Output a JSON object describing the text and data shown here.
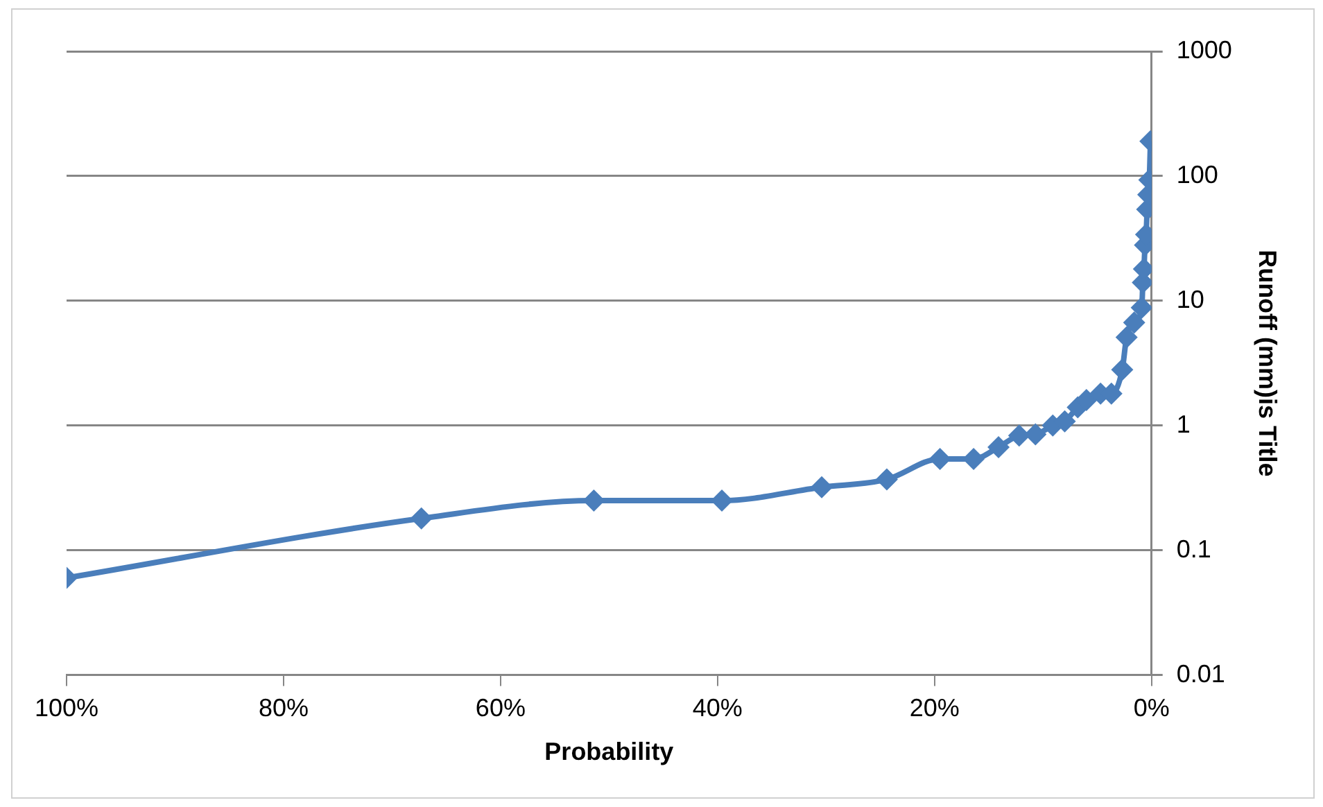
{
  "chart_data": {
    "type": "line",
    "xlabel": "Probability",
    "ylabel": "Runoff (mm)is Title",
    "x": [
      100,
      67.3,
      51.4,
      39.6,
      30.4,
      24.4,
      19.5,
      16.4,
      14.1,
      12.2,
      10.7,
      9.1,
      8.0,
      6.8,
      6.0,
      4.7,
      3.7,
      2.7,
      2.3,
      1.6,
      0.9,
      0.8,
      0.7,
      0.6,
      0.5,
      0.4,
      0.3,
      0.2,
      0.1
    ],
    "series": [
      {
        "color": "#4a7ebb",
        "values": [
          0.06,
          0.18,
          0.25,
          0.25,
          0.32,
          0.37,
          0.54,
          0.54,
          0.67,
          0.83,
          0.85,
          1.0,
          1.08,
          1.4,
          1.6,
          1.8,
          1.8,
          2.8,
          5.1,
          6.7,
          8.8,
          14,
          18,
          28,
          34,
          54,
          71,
          93,
          190
        ]
      }
    ],
    "xlim": [
      100,
      0
    ],
    "xticks": [
      {
        "value": 100,
        "label": "100%"
      },
      {
        "value": 80,
        "label": "80%"
      },
      {
        "value": 60,
        "label": "60%"
      },
      {
        "value": 40,
        "label": "40%"
      },
      {
        "value": 20,
        "label": "20%"
      },
      {
        "value": 0,
        "label": "0%"
      }
    ],
    "ylim": [
      0.01,
      1000
    ],
    "yticks": [
      0.01,
      0.1,
      1,
      10,
      100,
      1000
    ],
    "log": "y",
    "grid": "y",
    "legend": false,
    "marker": "diamond",
    "line_style": "solid"
  }
}
